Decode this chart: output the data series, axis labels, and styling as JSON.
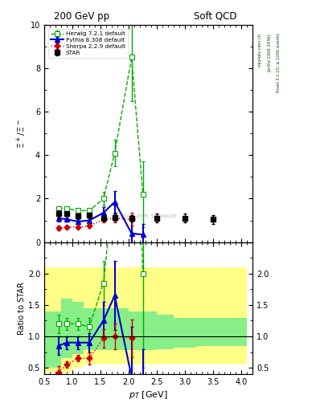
{
  "title_left": "200 GeV pp",
  "title_right": "Soft QCD",
  "ylabel_main": "$\\Xi^+/\\Xi^-$",
  "ylabel_ratio": "Ratio to STAR",
  "xlabel": "$p_T$ [GeV]",
  "watermark": "STAR_2005_S6960618",
  "rivet_label": "Rivet 3.1.10, ≥ 100k events",
  "arxiv_label": "[arXiv:1306.3436]",
  "mcplots_label": "mcplots.cern.ch",
  "star_x": [
    0.75,
    0.9,
    1.1,
    1.3,
    1.55,
    1.75,
    2.05,
    2.5,
    3.0,
    3.5
  ],
  "star_y": [
    1.3,
    1.3,
    1.2,
    1.25,
    1.1,
    1.15,
    1.1,
    1.1,
    1.1,
    1.05
  ],
  "star_yerr": [
    0.15,
    0.1,
    0.1,
    0.1,
    0.1,
    0.15,
    0.15,
    0.2,
    0.2,
    0.2
  ],
  "herwig_x": [
    0.75,
    0.9,
    1.1,
    1.3,
    1.55,
    1.75,
    2.05,
    2.25
  ],
  "herwig_y": [
    1.55,
    1.55,
    1.45,
    1.45,
    2.0,
    4.1,
    8.5,
    2.2
  ],
  "herwig_yerr": [
    0.1,
    0.05,
    0.05,
    0.1,
    0.3,
    0.6,
    2.0,
    1.5
  ],
  "pythia_x": [
    0.75,
    0.9,
    1.1,
    1.3,
    1.55,
    1.75,
    2.05,
    2.25
  ],
  "pythia_y": [
    1.1,
    1.05,
    0.95,
    1.0,
    1.35,
    1.85,
    0.4,
    0.35
  ],
  "pythia_yerr": [
    0.15,
    0.1,
    0.1,
    0.15,
    0.25,
    0.5,
    0.8,
    0.5
  ],
  "sherpa_x": [
    0.75,
    0.9,
    1.1,
    1.3,
    1.55,
    1.75,
    2.05
  ],
  "sherpa_y": [
    0.65,
    0.7,
    0.7,
    0.75,
    1.05,
    1.1,
    1.05
  ],
  "sherpa_yerr": [
    0.1,
    0.05,
    0.05,
    0.1,
    0.15,
    0.2,
    0.3
  ],
  "herwig_ratio_x": [
    0.75,
    0.9,
    1.1,
    1.3,
    1.55,
    1.75,
    2.05,
    2.25
  ],
  "herwig_ratio_y": [
    1.2,
    1.2,
    1.2,
    1.15,
    1.85,
    3.55,
    7.6,
    2.0
  ],
  "herwig_ratio_yerr": [
    0.15,
    0.1,
    0.1,
    0.15,
    0.35,
    0.65,
    2.5,
    1.5
  ],
  "pythia_ratio_x": [
    0.75,
    0.9,
    1.1,
    1.3,
    1.55,
    1.75,
    2.05,
    2.25
  ],
  "pythia_ratio_y": [
    0.85,
    0.9,
    0.9,
    0.9,
    1.25,
    1.65,
    0.35,
    0.3
  ],
  "pythia_ratio_yerr": [
    0.15,
    0.1,
    0.1,
    0.15,
    0.3,
    0.55,
    0.8,
    0.5
  ],
  "sherpa_ratio_x": [
    0.75,
    0.9,
    1.1,
    1.3,
    1.55,
    1.75,
    2.05
  ],
  "sherpa_ratio_y": [
    0.43,
    0.55,
    0.65,
    0.65,
    0.97,
    1.0,
    0.97
  ],
  "sherpa_ratio_yerr": [
    0.1,
    0.05,
    0.05,
    0.1,
    0.15,
    0.2,
    0.3
  ],
  "band_yellow_edges": [
    0.5,
    0.65,
    0.8,
    1.0,
    1.2,
    1.4,
    1.6,
    1.8,
    2.0,
    2.2,
    2.5,
    2.8,
    3.2,
    3.6,
    4.1
  ],
  "band_yellow_lo": [
    0.43,
    0.43,
    0.43,
    0.5,
    0.55,
    0.55,
    0.55,
    0.55,
    0.55,
    0.55,
    0.55,
    0.55,
    0.55,
    0.55
  ],
  "band_yellow_hi": [
    2.1,
    2.1,
    2.1,
    2.1,
    2.1,
    2.1,
    2.1,
    2.1,
    2.1,
    2.1,
    2.1,
    2.1,
    2.1,
    2.1
  ],
  "band_green_edges": [
    0.5,
    0.65,
    0.8,
    1.0,
    1.2,
    1.4,
    1.6,
    1.8,
    2.0,
    2.2,
    2.5,
    2.8,
    3.2,
    3.6,
    4.1
  ],
  "band_green_lo": [
    0.5,
    0.5,
    0.65,
    0.72,
    0.78,
    0.78,
    0.78,
    0.78,
    0.78,
    0.78,
    0.8,
    0.82,
    0.85,
    0.85
  ],
  "band_green_hi": [
    1.4,
    1.4,
    1.6,
    1.55,
    1.45,
    1.45,
    1.45,
    1.45,
    1.4,
    1.4,
    1.35,
    1.3,
    1.3,
    1.3
  ],
  "xlim": [
    0.5,
    4.2
  ],
  "ylim_main": [
    0,
    10
  ],
  "ylim_ratio": [
    0.4,
    2.5
  ],
  "yticks_main": [
    0,
    2,
    4,
    6,
    8,
    10
  ],
  "yticks_ratio": [
    0.5,
    1.0,
    1.5,
    2.0
  ],
  "color_star": "#000000",
  "color_herwig": "#00aa00",
  "color_pythia": "#0000cc",
  "color_sherpa": "#cc0000",
  "color_yellow": "#ffff88",
  "color_green": "#88ee88"
}
